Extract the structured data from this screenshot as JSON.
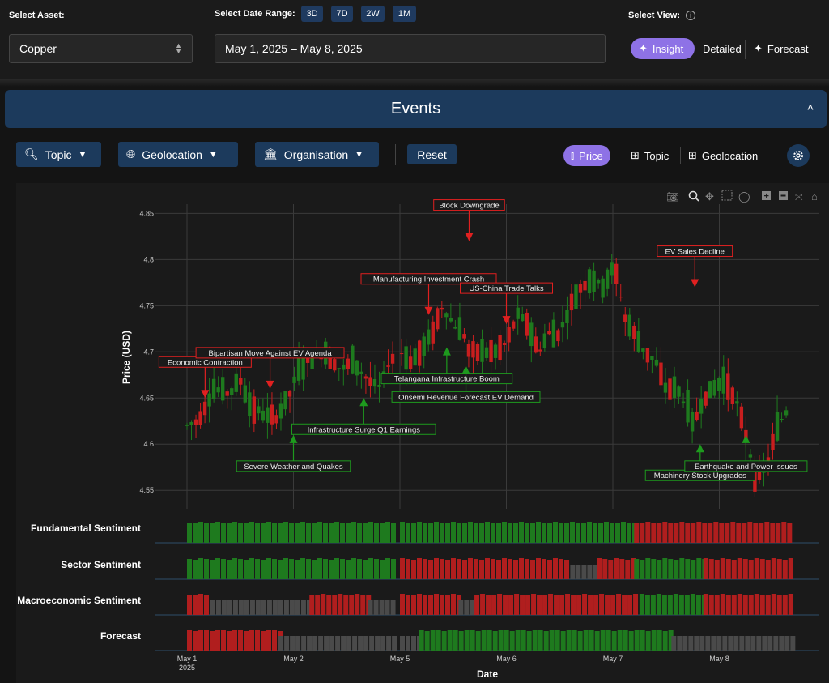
{
  "asset": {
    "label": "Select Asset:",
    "value": "Copper"
  },
  "date_range": {
    "label": "Select Date Range:",
    "buttons": [
      "3D",
      "7D",
      "2W",
      "1M"
    ],
    "value": "May 1, 2025 – May 8, 2025"
  },
  "view": {
    "label": "Select View:",
    "info_icon": "info-icon",
    "options": [
      "Insight",
      "Detailed",
      "Forecast"
    ],
    "active": "Insight"
  },
  "events_panel": {
    "title": "Events"
  },
  "filters": {
    "topic": "Topic",
    "geolocation": "Geolocation",
    "organisation": "Organisation",
    "reset": "Reset"
  },
  "chart_toggle": {
    "options": [
      "Price",
      "Topic",
      "Geolocation"
    ],
    "active": "Price"
  },
  "colors": {
    "up": "#1e8a1e",
    "down": "#d42020",
    "neutral": "#4a4a4a",
    "accent": "#8e72e6",
    "panel": "#1c3a5c"
  },
  "chart_data": {
    "type": "candlestick",
    "ylabel": "Price (USD)",
    "xlabel": "Date",
    "ylim": [
      4.53,
      4.86
    ],
    "yticks": [
      4.55,
      4.6,
      4.65,
      4.7,
      4.75,
      4.8,
      4.85
    ],
    "ytick_labels": [
      "4.55",
      "4.6",
      "4.65",
      "4.7",
      "4.75",
      "4.8",
      "4.85"
    ],
    "xticks": [
      {
        "label": "May 1",
        "sub": "2025",
        "pos": 0
      },
      {
        "label": "May 2",
        "pos": 1
      },
      {
        "label": "May 5",
        "pos": 2
      },
      {
        "label": "May 6",
        "pos": 3
      },
      {
        "label": "May 7",
        "pos": 4
      },
      {
        "label": "May 8",
        "pos": 5
      }
    ],
    "price_path": [
      [
        0.0,
        4.62
      ],
      [
        0.1,
        4.625
      ],
      [
        0.25,
        4.66
      ],
      [
        0.4,
        4.655
      ],
      [
        0.5,
        4.67
      ],
      [
        0.6,
        4.64
      ],
      [
        0.75,
        4.63
      ],
      [
        0.85,
        4.63
      ],
      [
        0.95,
        4.65
      ],
      [
        1.05,
        4.68
      ],
      [
        1.15,
        4.69
      ],
      [
        1.3,
        4.7
      ],
      [
        1.45,
        4.68
      ],
      [
        1.55,
        4.69
      ],
      [
        1.7,
        4.67
      ],
      [
        1.8,
        4.66
      ],
      [
        1.9,
        4.69
      ],
      [
        2.0,
        4.7
      ],
      [
        2.1,
        4.69
      ],
      [
        2.2,
        4.7
      ],
      [
        2.3,
        4.72
      ],
      [
        2.4,
        4.75
      ],
      [
        2.5,
        4.73
      ],
      [
        2.6,
        4.72
      ],
      [
        2.65,
        4.7
      ],
      [
        2.75,
        4.7
      ],
      [
        2.9,
        4.7
      ],
      [
        3.0,
        4.71
      ],
      [
        3.1,
        4.74
      ],
      [
        3.2,
        4.73
      ],
      [
        3.3,
        4.7
      ],
      [
        3.4,
        4.72
      ],
      [
        3.5,
        4.72
      ],
      [
        3.6,
        4.75
      ],
      [
        3.7,
        4.77
      ],
      [
        3.8,
        4.78
      ],
      [
        3.9,
        4.77
      ],
      [
        4.0,
        4.79
      ],
      [
        4.05,
        4.78
      ],
      [
        4.1,
        4.74
      ],
      [
        4.2,
        4.72
      ],
      [
        4.3,
        4.7
      ],
      [
        4.4,
        4.69
      ],
      [
        4.5,
        4.66
      ],
      [
        4.6,
        4.66
      ],
      [
        4.7,
        4.64
      ],
      [
        4.75,
        4.62
      ],
      [
        4.85,
        4.65
      ],
      [
        4.95,
        4.66
      ],
      [
        5.05,
        4.67
      ],
      [
        5.15,
        4.65
      ],
      [
        5.25,
        4.61
      ],
      [
        5.35,
        4.56
      ],
      [
        5.45,
        4.58
      ],
      [
        5.55,
        4.62
      ],
      [
        5.65,
        4.64
      ]
    ],
    "events": [
      {
        "label": "Economic Contraction",
        "type": "negative",
        "x": 0.17,
        "y": 4.65
      },
      {
        "label": "Bipartisan Move Against EV Agenda",
        "type": "negative",
        "x": 0.78,
        "y": 4.66
      },
      {
        "label": "Severe Weather and Quakes",
        "type": "positive",
        "x": 1.0,
        "y": 4.61
      },
      {
        "label": "Infrastructure Surge Q1 Earnings",
        "type": "positive",
        "x": 1.66,
        "y": 4.65
      },
      {
        "label": "Manufacturing Investment Crash",
        "type": "negative",
        "x": 2.27,
        "y": 4.74
      },
      {
        "label": "Telangana Infrastructure Boom",
        "type": "positive",
        "x": 2.44,
        "y": 4.705
      },
      {
        "label": "Block Downgrade",
        "type": "negative",
        "x": 2.65,
        "y": 4.82
      },
      {
        "label": "Onsemi Revenue Forecast EV Demand",
        "type": "positive",
        "x": 2.62,
        "y": 4.685
      },
      {
        "label": "US-China Trade Talks",
        "type": "negative",
        "x": 3.0,
        "y": 4.73
      },
      {
        "label": "EV Sales Decline",
        "type": "negative",
        "x": 4.77,
        "y": 4.77
      },
      {
        "label": "Machinery Stock Upgrades",
        "type": "positive",
        "x": 4.82,
        "y": 4.6
      },
      {
        "label": "Earthquake and Power Issues",
        "type": "positive",
        "x": 5.25,
        "y": 4.61
      }
    ],
    "sentiment_rows": [
      {
        "label": "Fundamental Sentiment",
        "segments": [
          [
            "up",
            0,
            1.96
          ],
          [
            "up",
            2.0,
            4.2
          ],
          [
            "down",
            4.2,
            5.68
          ]
        ]
      },
      {
        "label": "Sector Sentiment",
        "segments": [
          [
            "up",
            0,
            1.96
          ],
          [
            "down",
            2.0,
            3.6
          ],
          [
            "neutral",
            3.6,
            3.85
          ],
          [
            "down",
            3.85,
            4.2
          ],
          [
            "up",
            4.2,
            4.85
          ],
          [
            "down",
            4.85,
            5.68
          ]
        ]
      },
      {
        "label": "Macroeconomic Sentiment",
        "segments": [
          [
            "down",
            0,
            0.22
          ],
          [
            "neutral",
            0.22,
            1.15
          ],
          [
            "down",
            1.15,
            1.7
          ],
          [
            "neutral",
            1.7,
            1.96
          ],
          [
            "down",
            2.0,
            2.55
          ],
          [
            "neutral",
            2.55,
            2.7
          ],
          [
            "down",
            2.7,
            4.25
          ],
          [
            "up",
            4.25,
            4.85
          ],
          [
            "down",
            4.85,
            5.68
          ]
        ]
      },
      {
        "label": "Forecast",
        "segments": [
          [
            "down",
            0,
            0.86
          ],
          [
            "neutral",
            0.86,
            1.96
          ],
          [
            "neutral",
            2.0,
            2.18
          ],
          [
            "up",
            2.18,
            4.55
          ],
          [
            "neutral",
            4.55,
            5.68
          ]
        ]
      }
    ]
  }
}
